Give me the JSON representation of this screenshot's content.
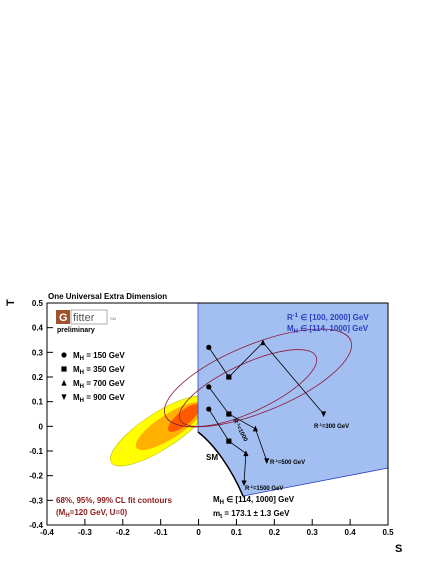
{
  "chart_data": {
    "type": "scatter",
    "title": "One Universal Extra Dimension",
    "x_label": "S",
    "y_label": "T",
    "xlim": [
      -0.4,
      0.5
    ],
    "ylim": [
      -0.4,
      0.5
    ],
    "xticks": [
      -0.4,
      -0.3,
      -0.2,
      -0.1,
      0,
      0.1,
      0.2,
      0.3,
      0.4,
      0.5
    ],
    "yticks": [
      -0.4,
      -0.3,
      -0.2,
      -0.1,
      0,
      0.1,
      0.2,
      0.3,
      0.4,
      0.5
    ],
    "series": [
      {
        "name": [
          "M",
          "H",
          " = 150 GeV"
        ],
        "marker": "circle",
        "color": "#000000",
        "x": [
          0.027,
          0.027,
          0.027
        ],
        "values": [
          0.32,
          0.16,
          0.07
        ]
      },
      {
        "name": [
          "M",
          "H",
          " = 350 GeV"
        ],
        "marker": "square",
        "color": "#000000",
        "x": [
          0.08,
          0.08,
          0.08
        ],
        "values": [
          0.2,
          0.05,
          -0.06
        ]
      },
      {
        "name": [
          "M",
          "H",
          " = 700 GeV"
        ],
        "marker": "triangle-up",
        "color": "#000000",
        "x": [
          0.17,
          0.15,
          0.125
        ],
        "values": [
          0.34,
          -0.01,
          -0.11
        ]
      },
      {
        "name": [
          "M",
          "H",
          " = 900 GeV"
        ],
        "marker": "triangle-down",
        "color": "#000000",
        "x": [
          0.33,
          0.18,
          0.12
        ],
        "values": [
          0.05,
          -0.14,
          -0.23
        ]
      }
    ],
    "annotations": {
      "logo": [
        "G",
        "fitter",
        "SM"
      ],
      "preliminary": "preliminary",
      "range_r": [
        "R",
        "-1",
        " ∈ [100, 2000] GeV"
      ],
      "range_mh": [
        "M",
        "H",
        " ∈ [114, 1000] GeV"
      ],
      "r300": [
        "R",
        "-1",
        "=300 GeV"
      ],
      "r500": [
        "R",
        "-1",
        "=500 GeV"
      ],
      "r1000": [
        "R",
        "-1",
        "=1000"
      ],
      "r1500": [
        "R",
        "-1",
        "=1500 GeV"
      ],
      "sm": "SM",
      "contours": "68%, 95%, 99% CL fit contours",
      "contours_ref": [
        "(M",
        "H",
        "=120 GeV, U=0)"
      ],
      "mh_range": [
        "M",
        "H",
        " ∈ [114, 1000] GeV"
      ],
      "mt": [
        "m",
        "t",
        " = 173.1 ± 1.3 GeV"
      ]
    }
  }
}
